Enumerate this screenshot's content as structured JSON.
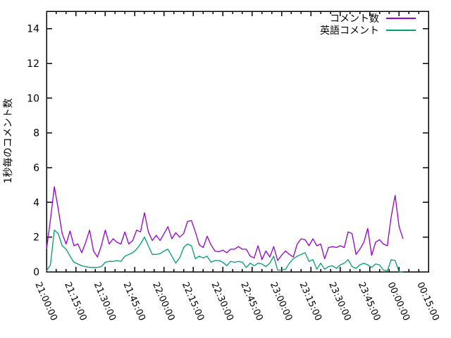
{
  "chart_data": {
    "type": "line",
    "title": "",
    "xlabel": "",
    "ylabel": "1秒毎のコメント数",
    "ylim": [
      0,
      15
    ],
    "yticks": [
      0,
      2,
      4,
      6,
      8,
      10,
      12,
      14
    ],
    "x_axis": {
      "unit": "time",
      "range_minutes": [
        0,
        195
      ],
      "minor_tick_step_minutes": 5,
      "major_ticks": [
        {
          "minute": 0,
          "label": "21:00:00"
        },
        {
          "minute": 15,
          "label": "21:15:00"
        },
        {
          "minute": 30,
          "label": "21:30:00"
        },
        {
          "minute": 45,
          "label": "21:45:00"
        },
        {
          "minute": 60,
          "label": "22:00:00"
        },
        {
          "minute": 75,
          "label": "22:15:00"
        },
        {
          "minute": 90,
          "label": "22:30:00"
        },
        {
          "minute": 105,
          "label": "22:45:00"
        },
        {
          "minute": 120,
          "label": "23:00:00"
        },
        {
          "minute": 135,
          "label": "23:15:00"
        },
        {
          "minute": 150,
          "label": "23:30:00"
        },
        {
          "minute": 165,
          "label": "23:45:00"
        },
        {
          "minute": 180,
          "label": "00:00:00"
        },
        {
          "minute": 195,
          "label": "00:15:00"
        }
      ]
    },
    "grid": false,
    "legend_position": "top-right-inside",
    "series": [
      {
        "name": "コメント数",
        "color": "#9400d3",
        "start_minute": 0,
        "step_minutes": 2,
        "values": [
          1.3,
          3.0,
          4.9,
          3.6,
          2.2,
          1.6,
          2.35,
          1.5,
          1.6,
          1.1,
          1.7,
          2.4,
          1.2,
          0.85,
          1.5,
          2.4,
          1.6,
          1.9,
          1.7,
          1.6,
          2.3,
          1.6,
          1.8,
          2.4,
          2.3,
          3.4,
          2.3,
          1.8,
          2.1,
          1.8,
          2.2,
          2.6,
          1.9,
          2.25,
          2.0,
          2.2,
          2.9,
          2.95,
          2.3,
          1.55,
          1.4,
          2.05,
          1.55,
          1.2,
          1.15,
          1.25,
          1.1,
          1.3,
          1.3,
          1.45,
          1.3,
          1.3,
          0.9,
          0.8,
          1.5,
          0.7,
          1.2,
          0.85,
          1.45,
          0.65,
          0.95,
          1.2,
          1.0,
          0.85,
          1.6,
          1.9,
          1.85,
          1.5,
          1.9,
          1.5,
          1.6,
          0.75,
          1.4,
          1.45,
          1.4,
          1.5,
          1.4,
          2.3,
          2.2,
          1.0,
          1.3,
          1.7,
          2.5,
          0.95,
          1.7,
          1.85,
          1.6,
          1.5,
          3.2,
          4.4,
          2.6,
          1.9
        ]
      },
      {
        "name": "英語コメント",
        "color": "#009e73",
        "start_minute": 0,
        "step_minutes": 2,
        "values": [
          0.05,
          0.4,
          2.4,
          2.2,
          1.5,
          1.3,
          0.9,
          0.55,
          0.45,
          0.35,
          0.3,
          0.25,
          0.25,
          0.25,
          0.3,
          0.55,
          0.6,
          0.6,
          0.65,
          0.6,
          0.9,
          1.0,
          1.1,
          1.3,
          1.6,
          2.0,
          1.5,
          1.0,
          1.0,
          1.05,
          1.2,
          1.3,
          0.9,
          0.5,
          0.8,
          1.4,
          1.6,
          1.5,
          0.75,
          0.9,
          0.8,
          0.9,
          0.55,
          0.65,
          0.65,
          0.55,
          0.35,
          0.6,
          0.55,
          0.6,
          0.55,
          0.25,
          0.5,
          0.35,
          0.5,
          0.45,
          0.3,
          0.5,
          0.9,
          0.1,
          0.1,
          0.15,
          0.5,
          0.75,
          0.9,
          1.0,
          1.1,
          0.6,
          0.7,
          0.15,
          0.5,
          0.15,
          0.3,
          0.35,
          0.2,
          0.4,
          0.5,
          0.7,
          0.3,
          0.2,
          0.4,
          0.5,
          0.4,
          0.25,
          0.45,
          0.4,
          0.1,
          0.05,
          0.7,
          0.65,
          0.0,
          0.0
        ]
      }
    ]
  }
}
